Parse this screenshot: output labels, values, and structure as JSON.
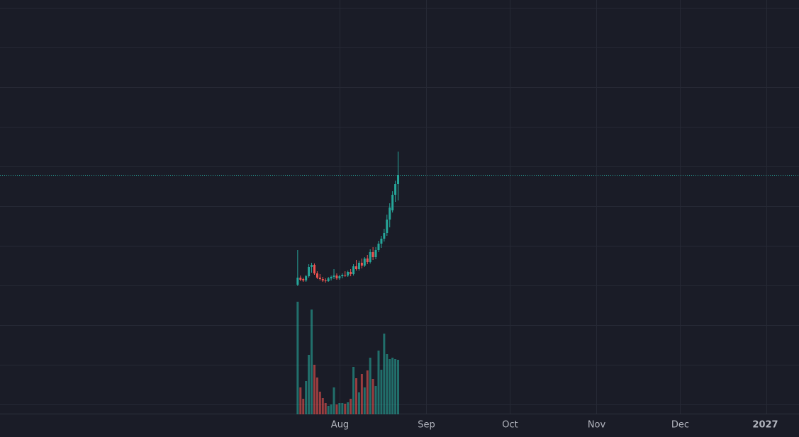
{
  "chart_data": {
    "type": "candlestick",
    "x": [
      16,
      17,
      18,
      19,
      20,
      21,
      22,
      23,
      24,
      25,
      26,
      27,
      28,
      29,
      30,
      31,
      32,
      33,
      34,
      35,
      36,
      37,
      38,
      39,
      40,
      41,
      42,
      43,
      44,
      45,
      46,
      47,
      48,
      49,
      50,
      51,
      52
    ],
    "open": [
      183,
      193,
      191,
      189,
      195,
      208,
      211,
      199,
      193,
      191,
      189,
      188,
      192,
      194,
      196,
      192,
      195,
      197,
      196,
      201,
      198,
      209,
      205,
      214,
      210,
      220,
      215,
      229,
      222,
      232,
      241,
      248,
      256,
      275,
      288,
      310,
      325
    ],
    "high": [
      232,
      196,
      193,
      197,
      212,
      214,
      213,
      202,
      198,
      194,
      192,
      194,
      196,
      205,
      199,
      197,
      199,
      202,
      203,
      205,
      212,
      218,
      217,
      220,
      222,
      225,
      233,
      236,
      236,
      245,
      252,
      262,
      282,
      298,
      315,
      330,
      371
    ],
    "low": [
      181,
      188,
      187,
      187,
      193,
      200,
      197,
      191,
      189,
      187,
      186,
      187,
      189,
      191,
      190,
      190,
      192,
      194,
      194,
      195,
      196,
      203,
      203,
      206,
      208,
      212,
      213,
      218,
      219,
      229,
      235,
      244,
      252,
      264,
      285,
      300,
      302
    ],
    "close": [
      193,
      190,
      189,
      195,
      208,
      211,
      199,
      193,
      191,
      189,
      188,
      192,
      194,
      196,
      192,
      195,
      197,
      196,
      201,
      198,
      209,
      205,
      214,
      210,
      220,
      215,
      229,
      222,
      232,
      241,
      248,
      256,
      275,
      292,
      310,
      325,
      338
    ],
    "volume": [
      159,
      38,
      22,
      47,
      84,
      148,
      70,
      52,
      32,
      23,
      16,
      12,
      14,
      38,
      14,
      16,
      16,
      15,
      17,
      22,
      67,
      51,
      31,
      57,
      38,
      62,
      80,
      50,
      40,
      90,
      63,
      114,
      85,
      78,
      80,
      78,
      77
    ],
    "up_color": "#26a69a",
    "down_color": "#ef5350",
    "xlim": [
      -90.7,
      195.7
    ],
    "xticks": [
      {
        "value": 31,
        "label": "Aug"
      },
      {
        "value": 62,
        "label": "Sep"
      },
      {
        "value": 92,
        "label": "Oct"
      },
      {
        "value": 123,
        "label": "Nov"
      },
      {
        "value": 153,
        "label": "Dec"
      },
      {
        "value": 184,
        "label": "2027"
      }
    ],
    "ylim": [
      0,
      585
    ],
    "yticks": [
      14,
      70,
      126,
      182,
      238,
      294,
      350,
      406,
      462,
      518,
      574
    ],
    "grid": true
  }
}
